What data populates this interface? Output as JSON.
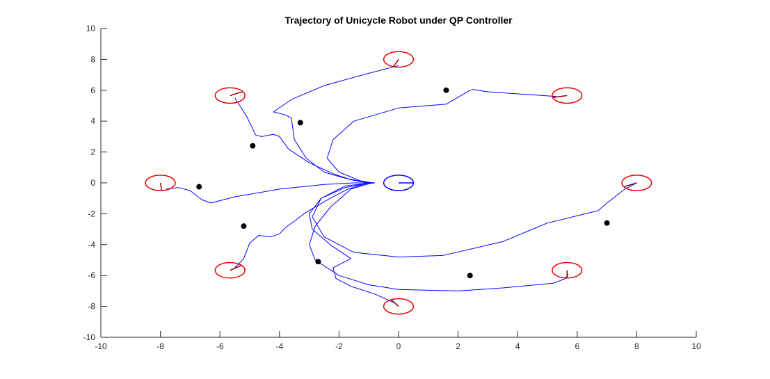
{
  "chart_data": {
    "type": "line",
    "title": "Trajectory of Unicycle Robot under QP Controller",
    "xlabel": "",
    "ylabel": "",
    "xlim": [
      -10,
      10
    ],
    "ylim": [
      -10,
      10
    ],
    "x_ticks": [
      -10,
      -8,
      -6,
      -4,
      -2,
      0,
      2,
      4,
      6,
      8,
      10
    ],
    "y_ticks": [
      -10,
      -8,
      -6,
      -4,
      -2,
      0,
      2,
      4,
      6,
      8,
      10
    ],
    "x_tick_labels": [
      "-10",
      "-8",
      "-6",
      "-4",
      "-2",
      "0",
      "2",
      "4",
      "6",
      "8",
      "10"
    ],
    "y_tick_labels": [
      "-10",
      "-8",
      "-6",
      "-4",
      "-2",
      "0",
      "2",
      "4",
      "6",
      "8",
      "10"
    ],
    "grid": false,
    "colors": {
      "trajectory": "#0000ff",
      "start_robot": "#e60000",
      "heading": "#8b0000",
      "goal_robot": "#0000ff",
      "obstacle": "#000000",
      "axis": "#262626"
    },
    "robot_radius": 0.5,
    "goal": {
      "x": 0,
      "y": 0,
      "heading_deg": 0
    },
    "start_robots": [
      {
        "x": 0,
        "y": 8,
        "heading_deg": -110
      },
      {
        "x": 5.66,
        "y": 5.66,
        "heading_deg": 195
      },
      {
        "x": 8,
        "y": 0,
        "heading_deg": 210
      },
      {
        "x": 5.66,
        "y": -5.66,
        "heading_deg": -90
      },
      {
        "x": 0,
        "y": -8,
        "heading_deg": 120
      },
      {
        "x": -5.66,
        "y": -5.66,
        "heading_deg": 40
      },
      {
        "x": -8,
        "y": 0,
        "heading_deg": -85
      },
      {
        "x": -5.66,
        "y": 5.66,
        "heading_deg": 30
      }
    ],
    "obstacles": [
      {
        "x": 1.6,
        "y": 6.0
      },
      {
        "x": -3.3,
        "y": 3.9
      },
      {
        "x": -4.9,
        "y": 2.4
      },
      {
        "x": -6.7,
        "y": -0.25
      },
      {
        "x": -5.2,
        "y": -2.8
      },
      {
        "x": -2.7,
        "y": -5.1
      },
      {
        "x": 2.4,
        "y": -6.0
      },
      {
        "x": 7.0,
        "y": -2.6
      }
    ],
    "series": [
      {
        "x": [
          0,
          -1.2,
          -2.5,
          -3.6,
          -4.2,
          -3.8,
          -3.6,
          -3.5,
          -3.1,
          -2.5,
          -1.8,
          -1.1,
          -0.8
        ],
        "y": [
          7.6,
          7.0,
          6.3,
          5.4,
          4.6,
          4.4,
          4.2,
          2.8,
          1.6,
          0.7,
          0.3,
          0.05,
          0
        ]
      },
      {
        "x": [
          5.3,
          3.0,
          2.5,
          2.4,
          1.6,
          0,
          -1.5,
          -2.2,
          -2.4,
          -2.0,
          -1.3,
          -0.9
        ],
        "y": [
          5.6,
          5.9,
          6.05,
          6.0,
          5.1,
          4.85,
          4.0,
          2.8,
          1.6,
          0.7,
          0.15,
          0
        ]
      },
      {
        "x": [
          8.0,
          7.6,
          7.0,
          6.7,
          5.0,
          3.5,
          1.5,
          0,
          -1.5,
          -2.5,
          -2.9,
          -2.6,
          -1.8,
          -0.9
        ],
        "y": [
          0,
          -0.4,
          -1.3,
          -1.8,
          -2.6,
          -3.8,
          -4.7,
          -4.8,
          -4.5,
          -3.5,
          -2.2,
          -1.0,
          -0.2,
          0
        ]
      },
      {
        "x": [
          5.7,
          5.6,
          5.2,
          3.5,
          2.0,
          0,
          -1.0,
          -2.0,
          -2.8,
          -3.0,
          -2.8,
          -2.3,
          -1.6,
          -0.9
        ],
        "y": [
          -5.9,
          -6.2,
          -6.5,
          -6.8,
          -7.0,
          -6.9,
          -6.6,
          -6.0,
          -5.0,
          -4.0,
          -2.8,
          -1.6,
          -0.4,
          0
        ]
      },
      {
        "x": [
          -0.1,
          -0.8,
          -1.6,
          -2.1,
          -2.2,
          -1.6,
          -2.3,
          -2.9,
          -3.0,
          -2.6,
          -1.8,
          -1.1,
          -0.8
        ],
        "y": [
          -7.8,
          -7.2,
          -6.7,
          -6.2,
          -5.5,
          -4.9,
          -4.0,
          -3.0,
          -2.0,
          -1.0,
          -0.3,
          -0.05,
          0
        ]
      },
      {
        "x": [
          -5.5,
          -5.2,
          -5.0,
          -4.7,
          -4.3,
          -4.0,
          -3.8,
          -3.1,
          -2.3,
          -1.7,
          -1.1,
          -0.8
        ],
        "y": [
          -5.5,
          -4.9,
          -3.9,
          -3.4,
          -3.5,
          -3.3,
          -2.9,
          -1.9,
          -1.0,
          -0.4,
          -0.05,
          0
        ]
      },
      {
        "x": [
          -7.8,
          -7.4,
          -7.0,
          -6.6,
          -6.3,
          -5.5,
          -4.0,
          -2.5,
          -1.5,
          -0.8
        ],
        "y": [
          -0.4,
          -0.3,
          -0.5,
          -1.1,
          -1.3,
          -0.9,
          -0.4,
          -0.1,
          0,
          0
        ]
      },
      {
        "x": [
          -5.5,
          -5.1,
          -4.8,
          -4.6,
          -4.2,
          -4.0,
          -3.7,
          -3.0,
          -2.2,
          -1.6,
          -1.1,
          -0.8
        ],
        "y": [
          5.5,
          4.3,
          3.1,
          3.0,
          3.15,
          3.0,
          2.2,
          1.3,
          0.6,
          0.2,
          0.03,
          0
        ]
      }
    ]
  }
}
